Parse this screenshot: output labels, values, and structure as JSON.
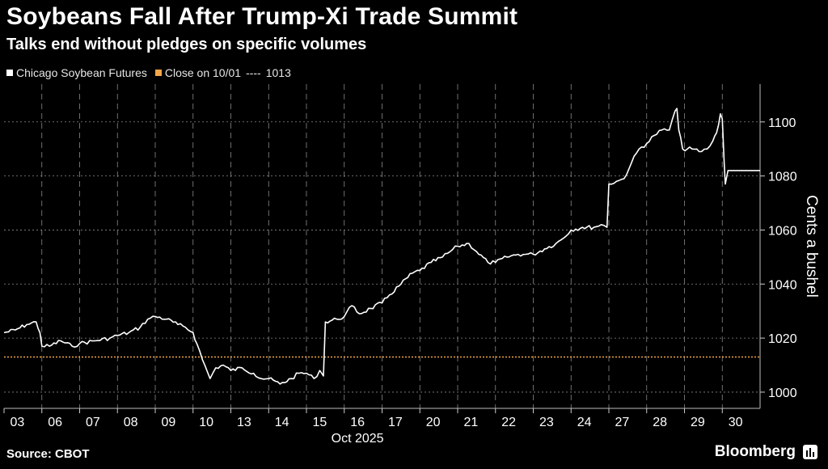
{
  "title": "Soybeans Fall After Trump-Xi Trade Summit",
  "subtitle": "Talks end without pledges on specific volumes",
  "legend": {
    "series_label": "Chicago Soybean Futures",
    "reference_label": "Close on 10/01",
    "reference_value": "1013"
  },
  "footer": {
    "source": "Source: CBOT",
    "brand": "Bloomberg"
  },
  "colors": {
    "series": "#ffffff",
    "reference": "#f3a74a",
    "grid": "#8a8a8a",
    "background": "#000000"
  },
  "chart_data": {
    "type": "line",
    "ylabel": "Cents a bushel",
    "xlabel_month": "Oct 2025",
    "ylim": [
      994,
      1114
    ],
    "yticks": [
      1000,
      1020,
      1040,
      1060,
      1080,
      1100
    ],
    "categories": [
      "03",
      "06",
      "07",
      "08",
      "09",
      "10",
      "13",
      "14",
      "15",
      "16",
      "17",
      "20",
      "21",
      "22",
      "23",
      "24",
      "27",
      "28",
      "29",
      "30"
    ],
    "reference_line": {
      "name": "Close on 10/01",
      "value": 1013
    },
    "series": [
      {
        "name": "Chicago Soybean Futures",
        "points": [
          [
            0.0,
            1022
          ],
          [
            0.3,
            1023
          ],
          [
            0.6,
            1025
          ],
          [
            0.85,
            1026
          ],
          [
            0.95,
            1022
          ],
          [
            1.0,
            1017
          ],
          [
            1.2,
            1017
          ],
          [
            1.5,
            1019
          ],
          [
            1.8,
            1017
          ],
          [
            2.0,
            1018
          ],
          [
            2.4,
            1019
          ],
          [
            2.8,
            1020
          ],
          [
            3.0,
            1021
          ],
          [
            3.3,
            1022
          ],
          [
            3.6,
            1024
          ],
          [
            3.8,
            1027
          ],
          [
            4.0,
            1028
          ],
          [
            4.3,
            1027
          ],
          [
            4.6,
            1025
          ],
          [
            4.8,
            1024
          ],
          [
            5.0,
            1022
          ],
          [
            5.1,
            1018
          ],
          [
            5.25,
            1012
          ],
          [
            5.45,
            1005
          ],
          [
            5.6,
            1009
          ],
          [
            5.8,
            1010
          ],
          [
            6.0,
            1008
          ],
          [
            6.3,
            1009
          ],
          [
            6.6,
            1007
          ],
          [
            6.8,
            1005
          ],
          [
            7.0,
            1005
          ],
          [
            7.3,
            1003
          ],
          [
            7.6,
            1005
          ],
          [
            7.8,
            1007
          ],
          [
            8.0,
            1007
          ],
          [
            8.2,
            1005
          ],
          [
            8.35,
            1008
          ],
          [
            8.45,
            1006
          ],
          [
            8.5,
            1026
          ],
          [
            8.8,
            1027
          ],
          [
            9.0,
            1028
          ],
          [
            9.2,
            1032
          ],
          [
            9.4,
            1029
          ],
          [
            9.7,
            1031
          ],
          [
            10.0,
            1033
          ],
          [
            10.2,
            1036
          ],
          [
            10.5,
            1040
          ],
          [
            10.8,
            1044
          ],
          [
            11.0,
            1045
          ],
          [
            11.3,
            1048
          ],
          [
            11.6,
            1050
          ],
          [
            11.8,
            1052
          ],
          [
            12.0,
            1054
          ],
          [
            12.3,
            1055
          ],
          [
            12.5,
            1052
          ],
          [
            12.8,
            1048
          ],
          [
            13.0,
            1048
          ],
          [
            13.3,
            1050
          ],
          [
            13.6,
            1051
          ],
          [
            13.8,
            1051
          ],
          [
            14.0,
            1051
          ],
          [
            14.3,
            1053
          ],
          [
            14.6,
            1055
          ],
          [
            14.8,
            1057
          ],
          [
            15.0,
            1060
          ],
          [
            15.3,
            1061
          ],
          [
            15.6,
            1061
          ],
          [
            15.8,
            1062
          ],
          [
            15.95,
            1061
          ],
          [
            16.0,
            1077
          ],
          [
            16.2,
            1078
          ],
          [
            16.4,
            1079
          ],
          [
            16.6,
            1085
          ],
          [
            16.8,
            1090
          ],
          [
            17.0,
            1092
          ],
          [
            17.2,
            1095
          ],
          [
            17.4,
            1097
          ],
          [
            17.6,
            1097
          ],
          [
            17.75,
            1104
          ],
          [
            17.8,
            1105
          ],
          [
            17.85,
            1097
          ],
          [
            17.95,
            1090
          ],
          [
            18.2,
            1090
          ],
          [
            18.45,
            1089
          ],
          [
            18.6,
            1090
          ],
          [
            18.75,
            1093
          ],
          [
            18.85,
            1096
          ],
          [
            18.95,
            1103
          ],
          [
            19.0,
            1101
          ],
          [
            19.05,
            1085
          ],
          [
            19.08,
            1077
          ],
          [
            19.15,
            1082
          ],
          [
            19.4,
            1082
          ],
          [
            19.7,
            1082
          ],
          [
            20.0,
            1082
          ]
        ]
      }
    ]
  }
}
